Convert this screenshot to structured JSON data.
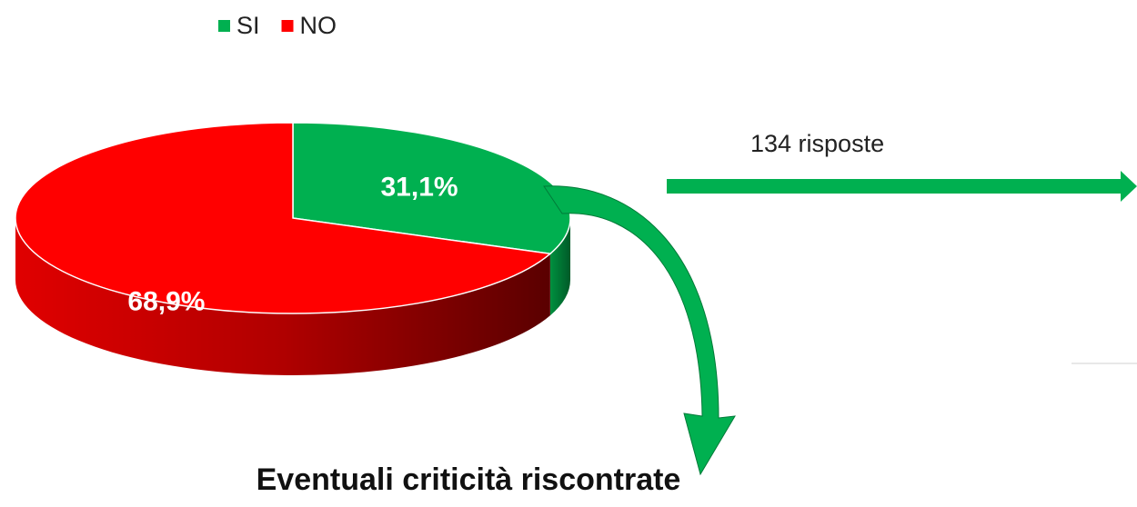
{
  "chart_data": {
    "type": "pie",
    "categories": [
      "SI",
      "NO"
    ],
    "values": [
      31.1,
      68.9
    ],
    "value_labels": [
      "31,1%",
      "68,9%"
    ],
    "colors": [
      "#00b050",
      "#ff0000"
    ],
    "legend": "top",
    "annotations": [
      "134 risposte",
      "Eventuali criticità riscontrate"
    ]
  }
}
